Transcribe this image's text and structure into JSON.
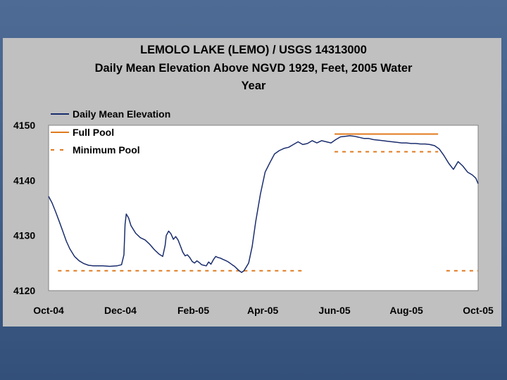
{
  "chart_data": {
    "type": "line",
    "title_lines": [
      "LEMOLO LAKE (LEMO) / USGS 14313000",
      "Daily Mean Elevation Above NGVD 1929, Feet, 2005 Water",
      "Year"
    ],
    "ylim": [
      4120,
      4150
    ],
    "yticks": [
      "4120",
      "4130",
      "4140",
      "4150"
    ],
    "xlabels": [
      "Oct-04",
      "Dec-04",
      "Feb-05",
      "Apr-05",
      "Jun-05",
      "Aug-05",
      "Oct-05"
    ],
    "xlim_days": [
      0,
      365
    ],
    "xlabel_days": [
      0,
      61,
      123,
      182,
      243,
      304,
      365
    ],
    "series": [
      {
        "name": "Daily Mean Elevation",
        "color": "#1a2d6e",
        "style": "solid",
        "x": [
          0,
          3,
          6,
          9,
          12,
          15,
          18,
          22,
          26,
          30,
          34,
          38,
          42,
          46,
          52,
          58,
          62,
          64,
          65,
          66,
          68,
          70,
          74,
          78,
          82,
          86,
          90,
          94,
          97,
          99,
          100,
          102,
          104,
          106,
          108,
          110,
          112,
          114,
          116,
          118,
          120,
          122,
          124,
          126,
          128,
          130,
          132,
          134,
          136,
          138,
          140,
          142,
          144,
          146,
          148,
          150,
          152,
          154,
          156,
          158,
          160,
          162,
          164,
          166,
          168,
          170,
          173,
          176,
          180,
          184,
          188,
          192,
          196,
          200,
          204,
          208,
          212,
          216,
          220,
          224,
          228,
          232,
          236,
          240,
          244,
          248,
          252,
          256,
          260,
          264,
          268,
          272,
          276,
          280,
          284,
          288,
          292,
          296,
          300,
          304,
          308,
          312,
          316,
          320,
          324,
          328,
          332,
          336,
          340,
          344,
          348,
          352,
          356,
          360,
          363,
          365
        ],
        "y": [
          4137.1,
          4135.9,
          4134.3,
          4132.6,
          4130.8,
          4129.0,
          4127.6,
          4126.2,
          4125.4,
          4124.9,
          4124.6,
          4124.5,
          4124.5,
          4124.5,
          4124.4,
          4124.5,
          4124.7,
          4126.5,
          4132.0,
          4133.9,
          4133.2,
          4131.8,
          4130.4,
          4129.6,
          4129.2,
          4128.4,
          4127.4,
          4126.6,
          4126.2,
          4128.2,
          4130.0,
          4130.8,
          4130.3,
          4129.3,
          4129.8,
          4129.2,
          4128.1,
          4127.0,
          4126.3,
          4126.5,
          4126.0,
          4125.3,
          4125.0,
          4125.4,
          4125.1,
          4124.7,
          4124.6,
          4124.5,
          4125.2,
          4124.8,
          4125.6,
          4126.2,
          4126.0,
          4125.9,
          4125.7,
          4125.5,
          4125.3,
          4125.0,
          4124.7,
          4124.4,
          4124.0,
          4123.6,
          4123.3,
          4123.6,
          4124.3,
          4125.0,
          4128.0,
          4132.5,
          4137.5,
          4141.5,
          4143.2,
          4144.8,
          4145.4,
          4145.8,
          4146.0,
          4146.5,
          4147.0,
          4146.5,
          4146.7,
          4147.2,
          4146.8,
          4147.2,
          4147.0,
          4146.8,
          4147.4,
          4147.9,
          4148.0,
          4148.1,
          4148.0,
          4147.8,
          4147.6,
          4147.6,
          4147.4,
          4147.3,
          4147.2,
          4147.1,
          4147.0,
          4146.9,
          4146.8,
          4146.8,
          4146.7,
          4146.7,
          4146.6,
          4146.6,
          4146.5,
          4146.3,
          4145.7,
          4144.5,
          4143.1,
          4142.0,
          4143.4,
          4142.6,
          4141.5,
          4141.0,
          4140.4,
          4139.4
        ]
      },
      {
        "name": "Full Pool",
        "color": "#e07a1e",
        "style": "solid",
        "x": [
          243,
          331
        ],
        "y": [
          4148.4,
          4148.4
        ]
      },
      {
        "name": "Minimum Pool",
        "color": "#e07a1e",
        "style": "dashed",
        "segments": [
          {
            "x": [
              8,
              215
            ],
            "y": [
              4123.6,
              4123.6
            ]
          },
          {
            "x": [
              243,
              331
            ],
            "y": [
              4145.2,
              4145.2
            ]
          },
          {
            "x": [
              338,
              365
            ],
            "y": [
              4123.6,
              4123.6
            ]
          }
        ]
      }
    ],
    "legend_position": "top-left"
  }
}
